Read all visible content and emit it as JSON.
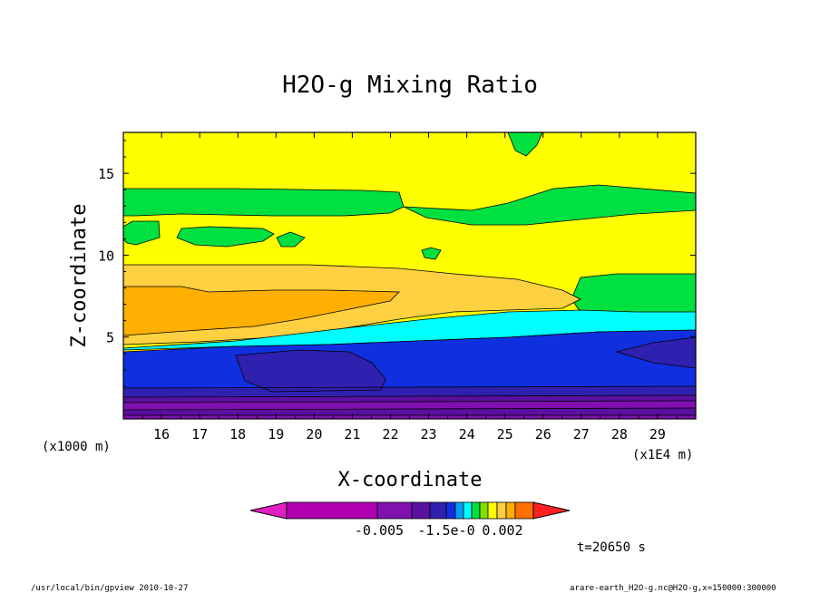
{
  "chart_data": {
    "type": "heatmap",
    "title": "H2O-g Mixing Ratio",
    "xlabel": "X-coordinate",
    "ylabel": "Z-coordinate",
    "x_unit": "(x1000 m)",
    "x_scale_note": "(x1E4 m)",
    "xlim": [
      15,
      30
    ],
    "ylim": [
      0,
      17.5
    ],
    "x_ticks": [
      "16",
      "17",
      "18",
      "19",
      "20",
      "21",
      "22",
      "23",
      "24",
      "25",
      "26",
      "27",
      "28",
      "29"
    ],
    "y_ticks": [
      "5",
      "10",
      "15"
    ],
    "colorbar_labels": [
      "-0.005",
      "-1.5e-0",
      "0.002"
    ],
    "colorbar_colors": [
      "#e020c0",
      "#b000b0",
      "#8010b0",
      "#5a10a0",
      "#3020b0",
      "#1030e0",
      "#00a0ff",
      "#00ffff",
      "#00e040",
      "#80e000",
      "#ffff00",
      "#ffd040",
      "#ffb000",
      "#ff7000",
      "#ff2020"
    ],
    "time": "t=20650 s",
    "footer_left": "/usr/local/bin/gpview  2010-10-27",
    "footer_right": "arare-earth_H2O-g.nc@H2O-g,x=150000:300000"
  }
}
